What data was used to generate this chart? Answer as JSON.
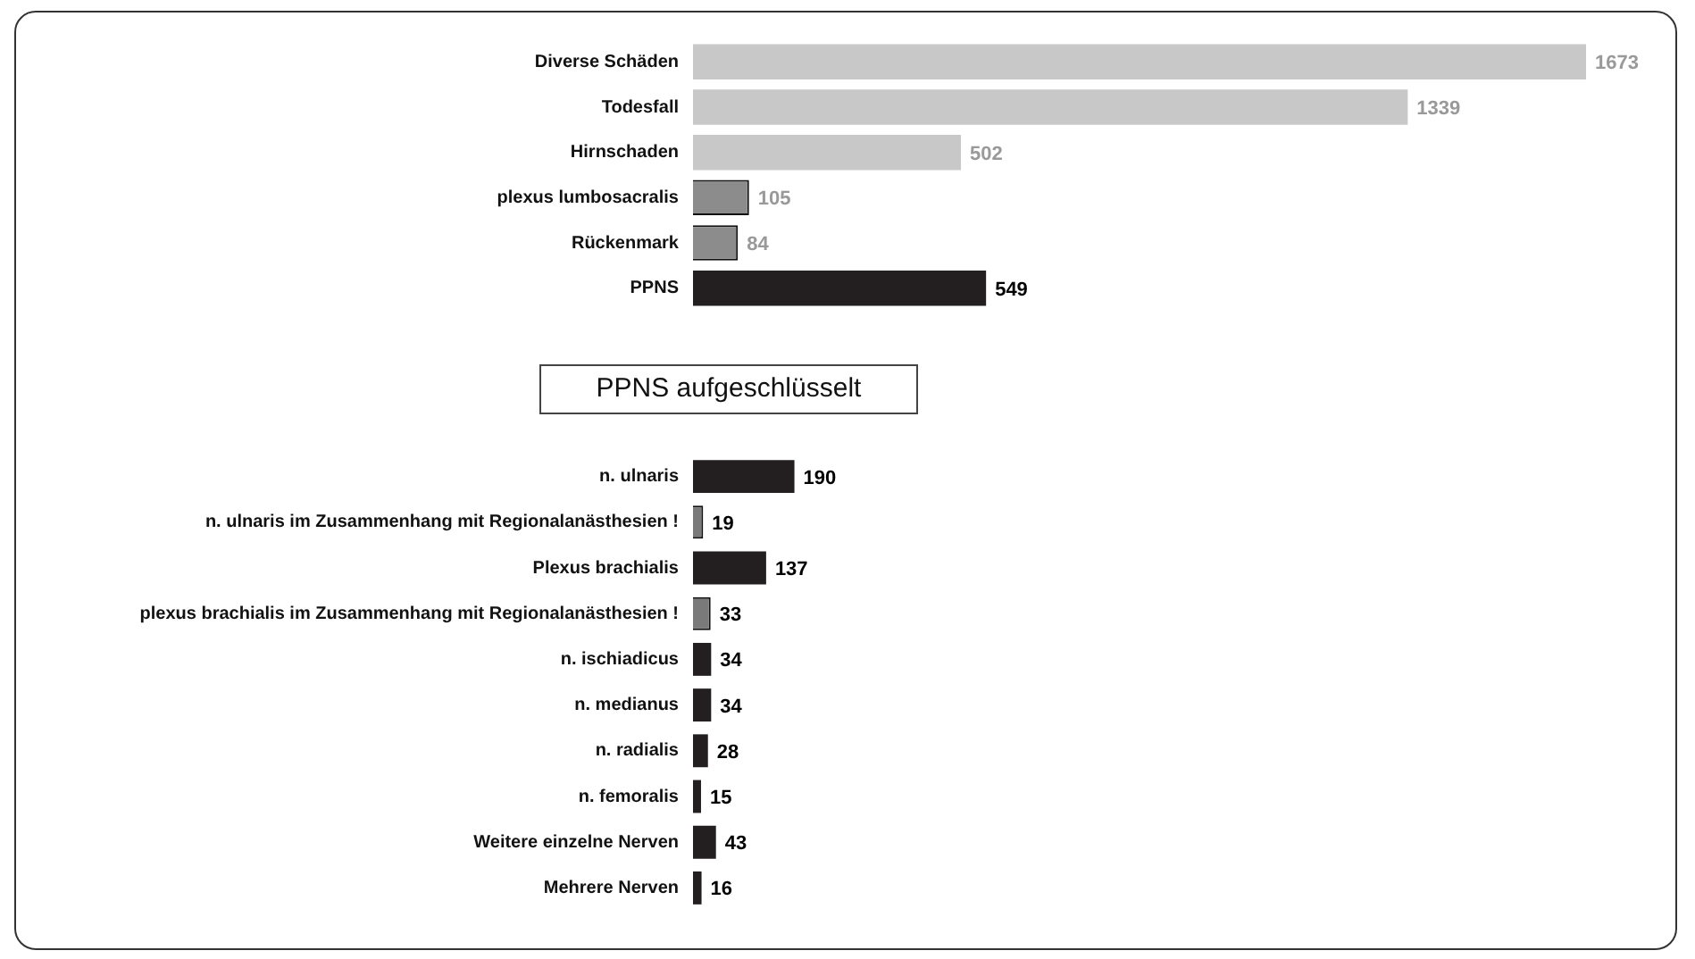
{
  "chart_data": [
    {
      "type": "bar",
      "orientation": "horizontal",
      "data_labels": true,
      "legend": false,
      "grid": false,
      "tick_labels": "y",
      "categories": [
        "Diverse Schäden",
        "Todesfall",
        "Hirnschaden",
        "plexus lumbosacralis",
        "Rückenmark",
        "PPNS"
      ],
      "values": [
        1673,
        1339,
        502,
        105,
        84,
        549
      ],
      "colors": [
        "#c8c8c8",
        "#c8c8c8",
        "#c8c8c8",
        "#8c8c8c",
        "#8c8c8c",
        "#231f20"
      ]
    },
    {
      "type": "bar",
      "orientation": "horizontal",
      "data_labels": true,
      "legend": false,
      "grid": false,
      "tick_labels": "y",
      "title": "PPNS aufgeschlüsselt",
      "categories": [
        "n. ulnaris",
        "n. ulnaris im Zusammenhang mit Regionalanästhesien !",
        "Plexus brachialis",
        "plexus brachialis im Zusammenhang mit Regionalanästhesien !",
        "n. ischiadicus",
        "n. medianus",
        "n. radialis",
        "n. femoralis",
        "Weitere einzelne Nerven",
        "Mehrere Nerven"
      ],
      "values": [
        190,
        19,
        137,
        33,
        34,
        34,
        28,
        15,
        43,
        16
      ],
      "colors": [
        "#231f20",
        "#7a7a7a",
        "#231f20",
        "#7a7a7a",
        "#231f20",
        "#231f20",
        "#231f20",
        "#231f20",
        "#231f20",
        "#231f20"
      ]
    }
  ]
}
